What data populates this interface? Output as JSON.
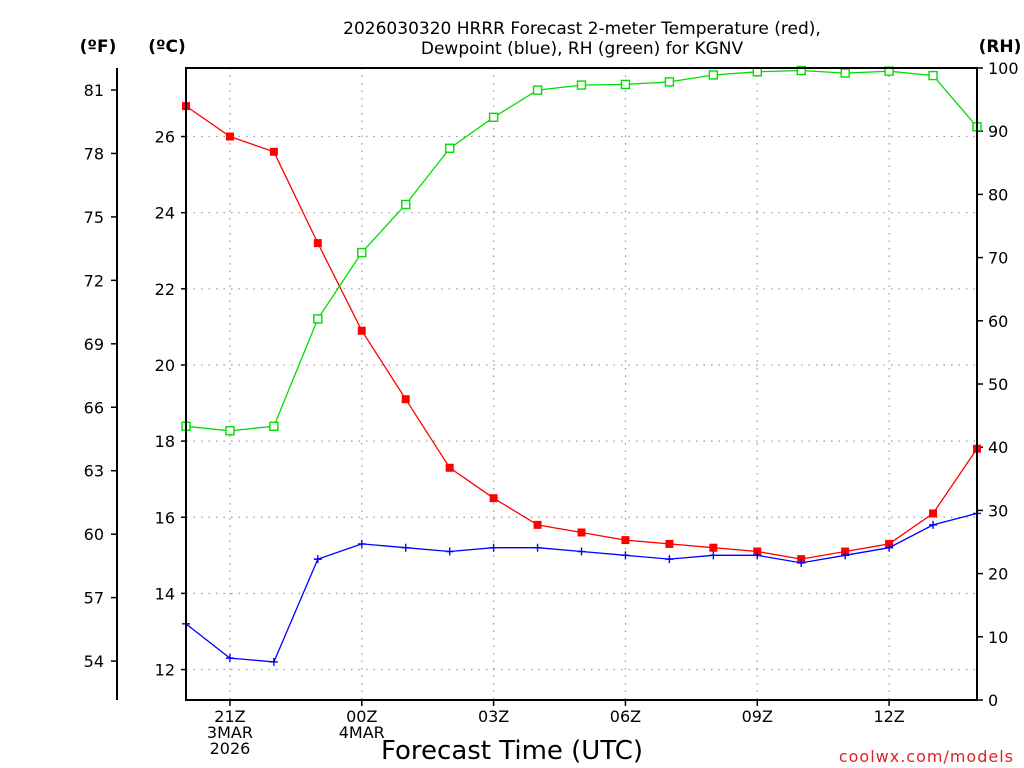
{
  "chart_data": {
    "type": "line",
    "title_line1": "2026030320 HRRR Forecast 2-meter Temperature (red),",
    "title_line2": "Dewpoint (blue), RH (green) for KGNV",
    "units": {
      "fahrenheit": "(ºF)",
      "celsius": "(ºC)",
      "rh": "(RH)"
    },
    "xlabel": "Forecast Time (UTC)",
    "credit": "coolwx.com/models",
    "x_range": [
      20,
      38
    ],
    "x_ticks": [
      {
        "x": 21,
        "lines": [
          "21Z",
          "3MAR",
          "2026"
        ]
      },
      {
        "x": 24,
        "lines": [
          "00Z",
          "4MAR"
        ]
      },
      {
        "x": 27,
        "lines": [
          "03Z"
        ]
      },
      {
        "x": 30,
        "lines": [
          "06Z"
        ]
      },
      {
        "x": 33,
        "lines": [
          "09Z"
        ]
      },
      {
        "x": 36,
        "lines": [
          "12Z"
        ]
      }
    ],
    "y_left_celsius": {
      "range": [
        11.2,
        27.8
      ],
      "ticks": [
        12,
        14,
        16,
        18,
        20,
        22,
        24,
        26
      ]
    },
    "y_fahrenheit": {
      "ticks": [
        54,
        57,
        60,
        63,
        66,
        69,
        72,
        75,
        78,
        81
      ]
    },
    "y_right_rh": {
      "range": [
        0,
        100
      ],
      "ticks": [
        0,
        10,
        20,
        30,
        40,
        50,
        60,
        70,
        80,
        90,
        100
      ]
    },
    "x": [
      20,
      21,
      22,
      23,
      24,
      25,
      26,
      27,
      28,
      29,
      30,
      31,
      32,
      33,
      34,
      35,
      36,
      37,
      38
    ],
    "series": [
      {
        "name": "Temperature",
        "axis": "celsius",
        "color": "#ff0000",
        "marker": "filled-square",
        "values": [
          26.8,
          26.0,
          25.6,
          23.2,
          20.9,
          19.1,
          17.3,
          16.5,
          15.8,
          15.6,
          15.4,
          15.3,
          15.2,
          15.1,
          14.9,
          15.1,
          15.3,
          16.1,
          17.8
        ]
      },
      {
        "name": "Dewpoint",
        "axis": "celsius",
        "color": "#0000ff",
        "marker": "plus",
        "values": [
          13.2,
          12.3,
          12.2,
          14.9,
          15.3,
          15.2,
          15.1,
          15.2,
          15.2,
          15.1,
          15.0,
          14.9,
          15.0,
          15.0,
          14.8,
          15.0,
          15.2,
          15.8,
          16.1
        ]
      },
      {
        "name": "RH",
        "axis": "rh",
        "color": "#00dd00",
        "marker": "open-square",
        "values": [
          43.3,
          42.6,
          43.3,
          60.3,
          70.8,
          78.4,
          87.3,
          92.2,
          96.5,
          97.3,
          97.4,
          97.8,
          98.9,
          99.4,
          99.6,
          99.2,
          99.5,
          98.8,
          90.7
        ]
      }
    ]
  }
}
